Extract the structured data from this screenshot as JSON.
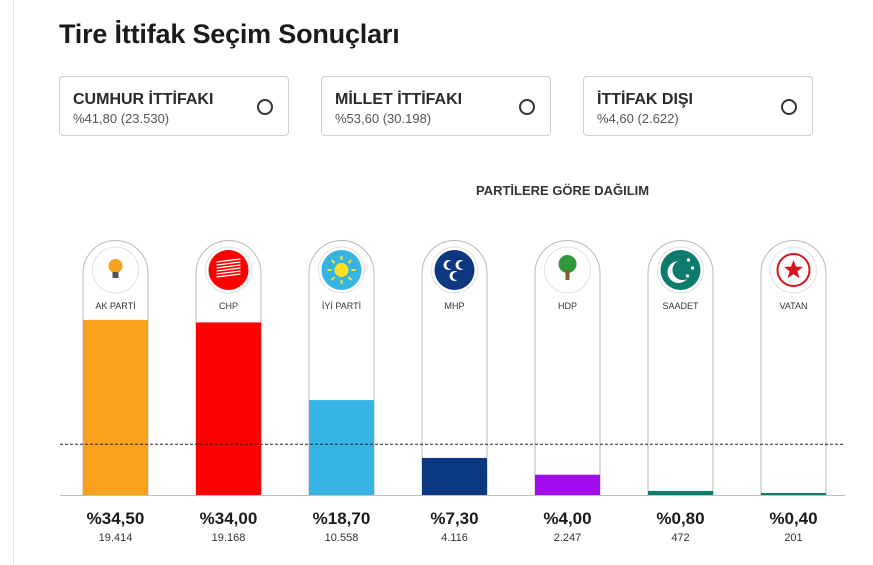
{
  "title": "Tire İttifak Seçim Sonuçları",
  "alliances": [
    {
      "name": "CUMHUR İTTİFAKI",
      "value": "%41,80 (23.530)"
    },
    {
      "name": "MİLLET İTTİFAKI",
      "value": "%53,60 (30.198)"
    },
    {
      "name": "İTTİFAK DIŞI",
      "value": "%4,60 (2.622)"
    }
  ],
  "chart_data": {
    "type": "bar",
    "title": "PARTİLERE GÖRE DAĞILIM",
    "categories": [
      "AK PARTİ",
      "CHP",
      "İYİ PARTİ",
      "MHP",
      "HDP",
      "SAADET",
      "VATAN"
    ],
    "values": [
      34.5,
      34.0,
      18.7,
      7.3,
      4.0,
      0.8,
      0.4
    ],
    "value_labels": [
      "%34,50",
      "%34,00",
      "%18,70",
      "%7,30",
      "%4,00",
      "%0,80",
      "%0,40"
    ],
    "votes": [
      "19.414",
      "19.168",
      "10.558",
      "4.116",
      "2.247",
      "472",
      "201"
    ],
    "colors": [
      "#f9a11b",
      "#ff0000",
      "#36b5e5",
      "#0c3882",
      "#a40cf0",
      "#0d7c6e",
      "#0d7c6e"
    ],
    "icons": [
      "ak-parti-logo-icon",
      "chp-logo-icon",
      "iyi-parti-logo-icon",
      "mhp-logo-icon",
      "hdp-logo-icon",
      "saadet-logo-icon",
      "vatan-logo-icon"
    ],
    "threshold": 10,
    "ylim": [
      0,
      100
    ],
    "grid": false
  }
}
